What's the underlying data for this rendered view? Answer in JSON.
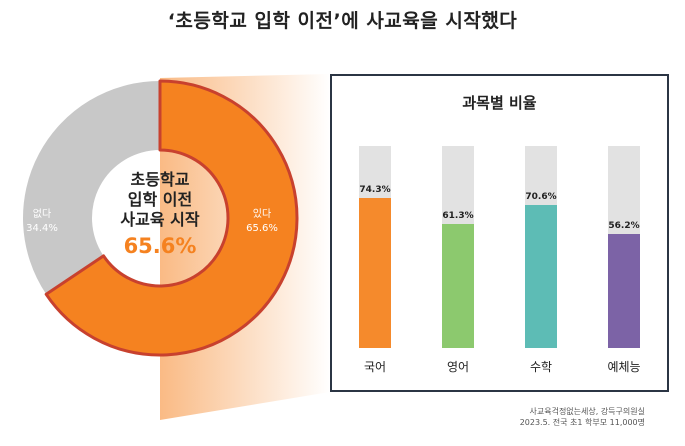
{
  "title": "‘초등학교 입학 이전’에 사교육을 시작했다",
  "colors": {
    "orange": "#f58220",
    "gray": "#c8c8c8",
    "red_border": "#c8412e",
    "track": "#e2e2e2",
    "panel_border": "#2b3544"
  },
  "donut": {
    "center_lines": [
      "초등학교",
      "입학 이전",
      "사교육 시작"
    ],
    "center_value": "65.6%"
  },
  "chart_data": [
    {
      "type": "pie",
      "title": "초등학교 입학 이전 사교육 시작",
      "slices": [
        {
          "label": "있다",
          "value": 65.6,
          "value_label": "65.6%",
          "color": "#f58220"
        },
        {
          "label": "없다",
          "value": 34.4,
          "value_label": "34.4%",
          "color": "#c8c8c8"
        }
      ]
    },
    {
      "type": "bar",
      "title": "과목별 비율",
      "categories": [
        "국어",
        "영어",
        "수학",
        "예체능"
      ],
      "values": [
        74.3,
        61.3,
        70.6,
        56.2
      ],
      "value_labels": [
        "74.3%",
        "61.3%",
        "70.6%",
        "56.2%"
      ],
      "colors": [
        "#f58a2c",
        "#8cc96e",
        "#5dbcb5",
        "#7c63a6"
      ],
      "ylim": [
        0,
        100
      ]
    }
  ],
  "footer": {
    "line1": "사교육걱정없는세상, 강득구의원실",
    "line2": "2023.5. 전국 초1 학부모 11,000명"
  }
}
